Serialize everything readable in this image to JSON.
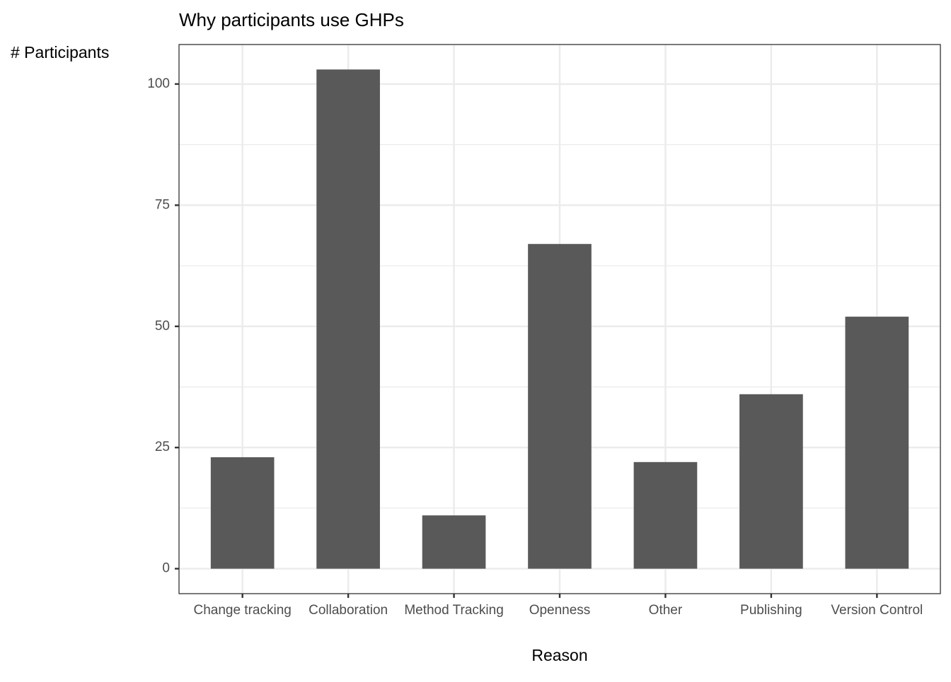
{
  "chart_data": {
    "type": "bar",
    "title": "Why participants use GHPs",
    "y_label": "# Participants",
    "x_label": "Reason",
    "categories": [
      "Change tracking",
      "Collaboration",
      "Method Tracking",
      "Openness",
      "Other",
      "Publishing",
      "Version Control"
    ],
    "values": [
      23,
      103,
      11,
      67,
      22,
      36,
      52
    ],
    "color": "#595959",
    "ylim": [
      -5.15,
      108.15
    ],
    "yticks": [
      0,
      25,
      50,
      75,
      100
    ],
    "grid": true
  }
}
